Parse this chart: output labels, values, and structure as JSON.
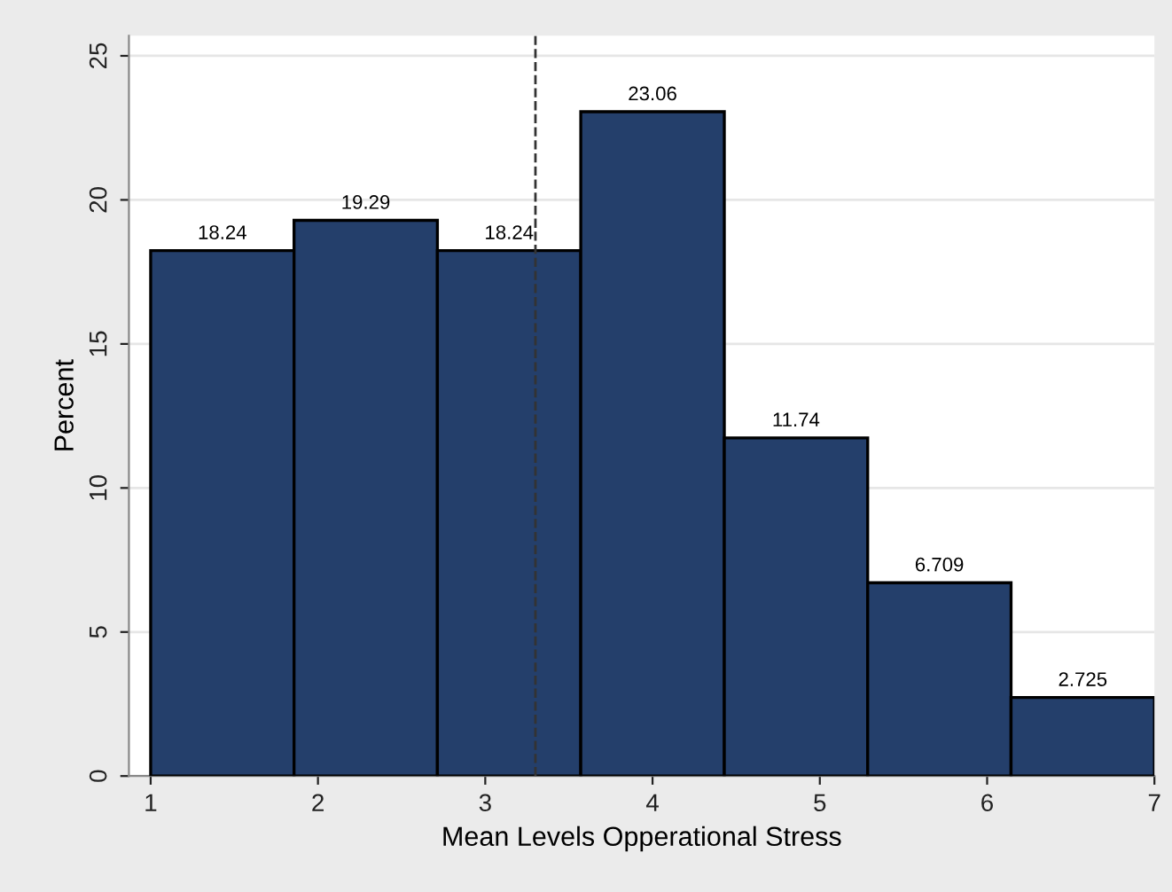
{
  "chart_data": {
    "type": "histogram",
    "xlabel": "Mean Levels Opperational Stress",
    "ylabel": "Percent",
    "bins": [
      1,
      1.857,
      2.714,
      3.571,
      4.429,
      5.286,
      6.143,
      7
    ],
    "values": [
      18.24,
      19.29,
      18.24,
      23.06,
      11.74,
      6.709,
      2.725
    ],
    "color": "#243f6b",
    "data_labels": true,
    "xlim": [
      0.87,
      7
    ],
    "xticks": [
      1,
      2,
      3,
      4,
      5,
      6,
      7
    ],
    "ylim": [
      0,
      25.7
    ],
    "yticks": [
      0,
      5,
      10,
      15,
      20,
      25
    ],
    "grid": "y",
    "ref_lines": [
      {
        "axis": "x",
        "value": 3.3,
        "line_style": "dashed",
        "color": "#333333"
      }
    ]
  }
}
